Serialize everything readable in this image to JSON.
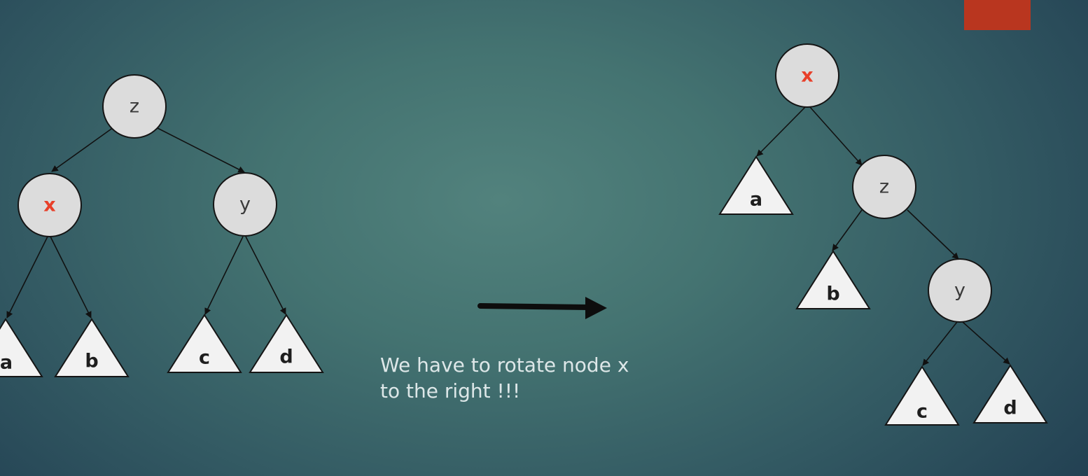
{
  "colors": {
    "highlight_node_text": "#e8402a",
    "corner_tab": "#b9361f",
    "arrow": "#0d0d0d"
  },
  "left_tree": {
    "root": "z",
    "left_child": "x",
    "right_child": "y",
    "subtrees": [
      "a",
      "b",
      "c",
      "d"
    ]
  },
  "right_tree": {
    "root": "x",
    "right_child": "z",
    "grandchild": "y",
    "subtrees": [
      "a",
      "b",
      "c",
      "d"
    ]
  },
  "caption": {
    "line1": "We have to rotate node x",
    "line2": "to the right !!!"
  },
  "transition_arrow": "right-arrow-icon"
}
